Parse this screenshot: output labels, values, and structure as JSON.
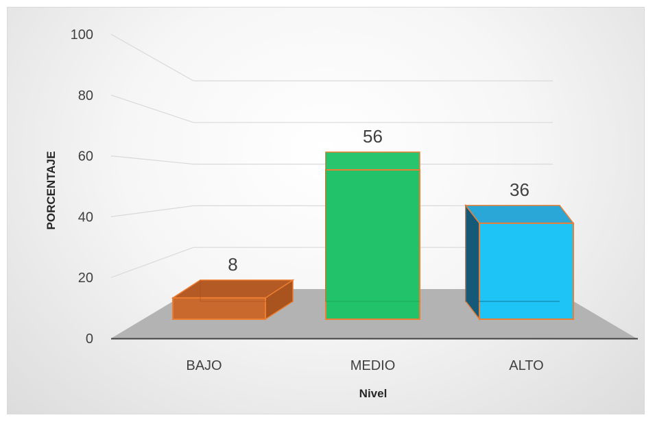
{
  "chart_data": {
    "type": "bar",
    "title": "",
    "xlabel": "Nivel",
    "ylabel": "PORCENTAJE",
    "categories": [
      "BAJO",
      "MEDIO",
      "ALTO"
    ],
    "values": [
      8,
      56,
      36
    ],
    "data_labels": [
      "8",
      "56",
      "36"
    ],
    "ylim": [
      0,
      100
    ],
    "yticks": [
      "0",
      "20",
      "40",
      "60",
      "80",
      "100"
    ],
    "grid": true,
    "legend": "none",
    "style": "3d-column",
    "colors": {
      "BAJO": "#c9692e",
      "MEDIO": "#22c26a",
      "ALTO": "#1ec4f5",
      "bar_edge": "#ed7d31",
      "floor": "#b3b3b3",
      "grid": "#d9d9d9"
    }
  }
}
